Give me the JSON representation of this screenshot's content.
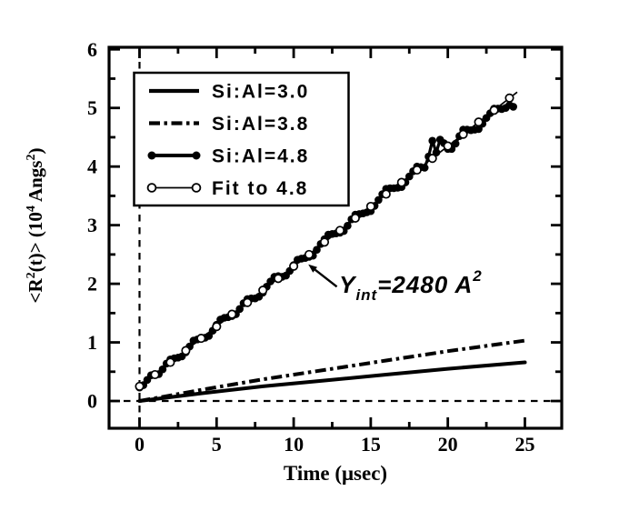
{
  "figure": {
    "background": "#ffffff",
    "ink": "#000000"
  },
  "chart_data": {
    "type": "line",
    "title": "",
    "xlabel": "Time (μsec)",
    "ylabel": "<R^2(t)> (10^4 Angs^2)",
    "ylabel_parts": [
      {
        "t": "<R"
      },
      {
        "t": "2",
        "s": "sup"
      },
      {
        "t": "(t)> (10"
      },
      {
        "t": "4",
        "s": "sup"
      },
      {
        "t": " Angs"
      },
      {
        "t": "2",
        "s": "sup"
      },
      {
        "t": ")"
      }
    ],
    "xlim": [
      -1.975,
      27.39
    ],
    "ylim": [
      -0.465,
      6.035
    ],
    "grid": false,
    "xticks": {
      "major": [
        0,
        5,
        10,
        15,
        20,
        25
      ],
      "minor": [
        2.5,
        7.5,
        12.5,
        17.5,
        22.5
      ],
      "labels": [
        "0",
        "5",
        "10",
        "15",
        "20",
        "25"
      ]
    },
    "yticks": {
      "major": [
        0,
        1,
        2,
        3,
        4,
        5,
        6
      ],
      "minor": [
        0.5,
        1.5,
        2.5,
        3.5,
        4.5,
        5.5
      ],
      "labels": [
        "0",
        "1",
        "2",
        "3",
        "4",
        "5",
        "6"
      ]
    },
    "zero_lines": {
      "vertical_at_x": 0,
      "horizontal_at_y": 0,
      "style": "dashed"
    },
    "legend": {
      "position": "upper-left",
      "entries": [
        {
          "label": "Si:Al=3.0",
          "style": "thick-solid-line"
        },
        {
          "label": "Si:Al=3.8",
          "style": "thick-dash-dot-line"
        },
        {
          "label": "Si:Al=4.8",
          "style": "thick-line-filled-circles"
        },
        {
          "label": "Fit to 4.8",
          "style": "thin-line-open-circles"
        }
      ]
    },
    "annotation": {
      "text": "Y_int=2480 A^2",
      "parts": [
        {
          "t": "Y"
        },
        {
          "t": "int",
          "s": "sub"
        },
        {
          "t": "=2480 A"
        },
        {
          "t": "2",
          "s": "sup"
        }
      ],
      "text_anchor_xy": [
        12.95,
        1.85
      ],
      "arrow_tail_xy": [
        12.8,
        1.95
      ],
      "arrow_tip_xy": [
        10.95,
        2.33
      ]
    },
    "series": [
      {
        "name": "Si:Al=3.0",
        "line": "solid",
        "marker": "none",
        "points": [
          [
            0,
            0
          ],
          [
            4,
            0.13
          ],
          [
            8,
            0.25
          ],
          [
            12,
            0.35
          ],
          [
            16,
            0.45
          ],
          [
            20,
            0.55
          ],
          [
            25,
            0.66
          ]
        ]
      },
      {
        "name": "Si:Al=3.8",
        "line": "dash-dot",
        "marker": "none",
        "points": [
          [
            0,
            0
          ],
          [
            4,
            0.19
          ],
          [
            8,
            0.37
          ],
          [
            12,
            0.53
          ],
          [
            16,
            0.69
          ],
          [
            20,
            0.85
          ],
          [
            25,
            1.03
          ]
        ]
      },
      {
        "name": "Si:Al=4.8",
        "line": "solid",
        "marker": "filled-circle",
        "t_start": 0,
        "t_step": 0.25,
        "values": [
          0.23,
          0.27,
          0.36,
          0.44,
          0.45,
          0.46,
          0.54,
          0.64,
          0.71,
          0.73,
          0.74,
          0.76,
          0.83,
          0.93,
          1.03,
          1.05,
          1.06,
          1.08,
          1.11,
          1.2,
          1.3,
          1.39,
          1.42,
          1.43,
          1.45,
          1.48,
          1.57,
          1.67,
          1.74,
          1.75,
          1.75,
          1.78,
          1.85,
          1.95,
          2.04,
          2.12,
          2.13,
          2.12,
          2.14,
          2.22,
          2.32,
          2.41,
          2.43,
          2.44,
          2.46,
          2.48,
          2.58,
          2.68,
          2.76,
          2.84,
          2.85,
          2.86,
          2.87,
          2.9,
          2.99,
          3.1,
          3.18,
          3.19,
          3.2,
          3.22,
          3.24,
          3.33,
          3.43,
          3.53,
          3.62,
          3.63,
          3.63,
          3.64,
          3.65,
          3.73,
          3.83,
          3.92,
          4.0,
          3.99,
          3.98,
          4.17,
          4.44,
          4.24,
          4.46,
          4.4,
          4.3,
          4.3,
          4.39,
          4.52,
          4.63,
          4.63,
          4.62,
          4.63,
          4.64,
          4.73,
          4.83,
          4.91,
          4.99,
          4.99,
          4.98,
          5.0,
          5.05,
          5.02
        ]
      },
      {
        "name": "Fit to 4.8",
        "line": "thin-solid",
        "marker": "open-circle",
        "fit_intercept_angs2": 2480,
        "fit_intercept": 0.248,
        "fit_slope": 0.205,
        "line_extent": [
          [
            0,
            0.248
          ],
          [
            24.5,
            5.27
          ]
        ],
        "points": [
          [
            0,
            0.25
          ],
          [
            1,
            0.45
          ],
          [
            2,
            0.66
          ],
          [
            3,
            0.86
          ],
          [
            4,
            1.07
          ],
          [
            5,
            1.27
          ],
          [
            6,
            1.48
          ],
          [
            7,
            1.68
          ],
          [
            8,
            1.89
          ],
          [
            9,
            2.09
          ],
          [
            10,
            2.3
          ],
          [
            11,
            2.5
          ],
          [
            12,
            2.71
          ],
          [
            13,
            2.91
          ],
          [
            14,
            3.12
          ],
          [
            15,
            3.32
          ],
          [
            16,
            3.53
          ],
          [
            17,
            3.73
          ],
          [
            18,
            3.94
          ],
          [
            19,
            4.14
          ],
          [
            20,
            4.35
          ],
          [
            21,
            4.55
          ],
          [
            22,
            4.76
          ],
          [
            23,
            4.96
          ],
          [
            24,
            5.17
          ]
        ]
      }
    ]
  }
}
